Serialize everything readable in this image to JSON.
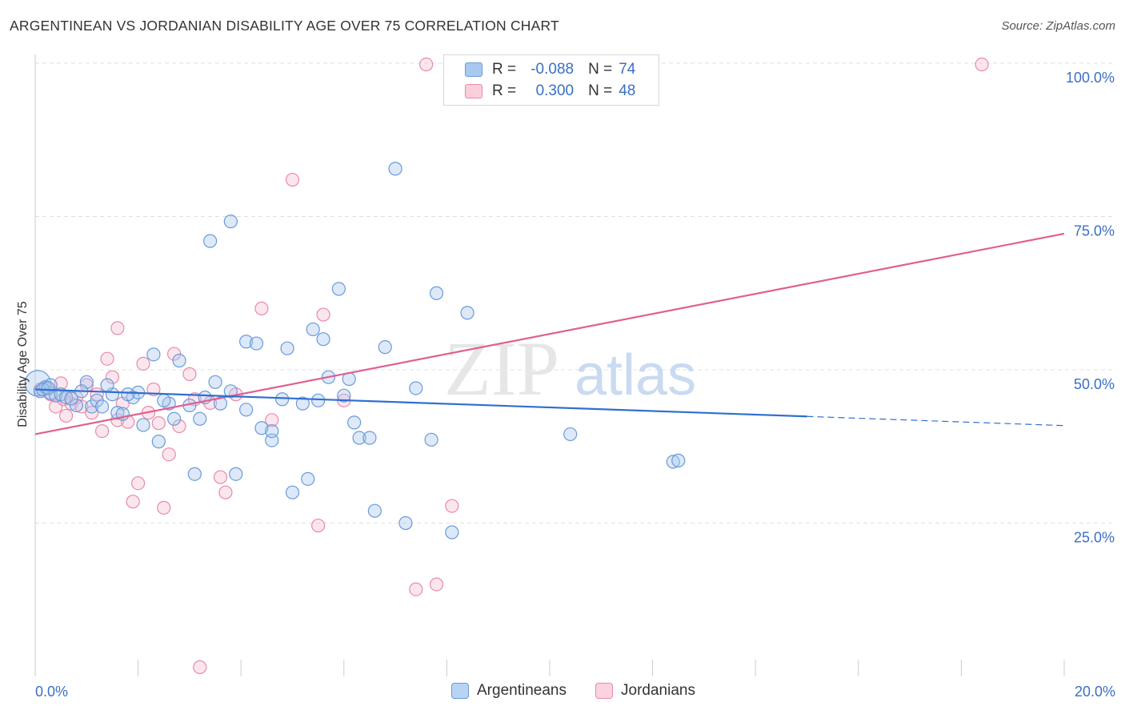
{
  "title": "ARGENTINEAN VS JORDANIAN DISABILITY AGE OVER 75 CORRELATION CHART",
  "source": "Source: ZipAtlas.com",
  "watermark": {
    "zip": "ZIP",
    "atlas": "atlas"
  },
  "legend": {
    "r_label": "R =",
    "n_label": "N =",
    "rows": [
      {
        "r": "-0.088",
        "n": "74"
      },
      {
        "r": "0.300",
        "n": "48"
      }
    ]
  },
  "bottom_legend": {
    "a": "Argentineans",
    "b": "Jordanians"
  },
  "colors": {
    "blue_fill": "#a9c8f0",
    "blue_stroke": "#6a9ad8",
    "blue_line": "#2f6fd0",
    "pink_fill": "#f5b7cb",
    "pink_stroke": "#e88aa8",
    "pink_line": "#e0608e",
    "axis_label": "#3a6fc4",
    "grid": "#e0e0e0"
  },
  "chart_data": {
    "type": "scatter",
    "title": "ARGENTINEAN VS JORDANIAN DISABILITY AGE OVER 75 CORRELATION CHART",
    "xlabel": "",
    "ylabel": "Disability Age Over 75",
    "xlim": [
      0,
      20
    ],
    "ylim": [
      0,
      100
    ],
    "x_tick_labels": [
      "0.0%",
      "20.0%"
    ],
    "y_ticks": [
      25,
      50,
      75,
      100
    ],
    "y_tick_labels": [
      "25.0%",
      "50.0%",
      "75.0%",
      "100.0%"
    ],
    "grid": true,
    "legend_position": "top-center",
    "series": [
      {
        "name": "Argentineans",
        "r": -0.088,
        "n": 74,
        "trend": {
          "x0": 0,
          "y0": 46.8,
          "x1": 15.0,
          "y1": 42.4,
          "dash_to_x": 20.0,
          "dash_to_y": 40.9
        },
        "points": [
          [
            0.05,
            47.8
          ],
          [
            0.1,
            46.5
          ],
          [
            0.2,
            47.2
          ],
          [
            0.3,
            46.2
          ],
          [
            0.4,
            45.8
          ],
          [
            0.5,
            46.0
          ],
          [
            0.6,
            45.5
          ],
          [
            0.8,
            44.2
          ],
          [
            1.0,
            48.0
          ],
          [
            1.1,
            44.0
          ],
          [
            1.2,
            45.0
          ],
          [
            1.3,
            44.0
          ],
          [
            1.5,
            46.0
          ],
          [
            1.6,
            43.0
          ],
          [
            1.7,
            42.8
          ],
          [
            1.9,
            45.5
          ],
          [
            2.1,
            41.0
          ],
          [
            2.3,
            52.5
          ],
          [
            2.4,
            38.3
          ],
          [
            2.6,
            44.5
          ],
          [
            2.7,
            42.0
          ],
          [
            2.8,
            51.5
          ],
          [
            3.0,
            44.2
          ],
          [
            3.1,
            33.0
          ],
          [
            3.2,
            42.0
          ],
          [
            3.3,
            45.5
          ],
          [
            3.4,
            71.0
          ],
          [
            3.5,
            48.0
          ],
          [
            3.6,
            44.5
          ],
          [
            3.8,
            46.5
          ],
          [
            3.8,
            74.2
          ],
          [
            3.9,
            33.0
          ],
          [
            4.1,
            54.6
          ],
          [
            4.1,
            43.5
          ],
          [
            4.3,
            54.3
          ],
          [
            4.4,
            40.5
          ],
          [
            4.6,
            38.5
          ],
          [
            4.6,
            40.0
          ],
          [
            4.8,
            45.2
          ],
          [
            4.9,
            53.5
          ],
          [
            5.0,
            30.0
          ],
          [
            5.2,
            44.5
          ],
          [
            5.3,
            32.2
          ],
          [
            5.4,
            56.6
          ],
          [
            5.5,
            45.0
          ],
          [
            5.6,
            55.0
          ],
          [
            5.7,
            48.8
          ],
          [
            5.9,
            63.2
          ],
          [
            6.0,
            45.8
          ],
          [
            6.1,
            48.5
          ],
          [
            6.2,
            41.4
          ],
          [
            6.3,
            38.9
          ],
          [
            6.5,
            38.9
          ],
          [
            6.6,
            27.0
          ],
          [
            6.8,
            53.7
          ],
          [
            7.0,
            82.8
          ],
          [
            7.2,
            25.0
          ],
          [
            7.4,
            47.0
          ],
          [
            7.7,
            38.6
          ],
          [
            7.8,
            62.5
          ],
          [
            8.1,
            23.5
          ],
          [
            8.4,
            59.3
          ],
          [
            10.4,
            39.5
          ],
          [
            12.4,
            35.0
          ],
          [
            12.5,
            35.2
          ],
          [
            0.9,
            46.5
          ],
          [
            1.4,
            47.5
          ],
          [
            2.0,
            46.3
          ],
          [
            0.7,
            45.3
          ],
          [
            0.3,
            47.5
          ],
          [
            1.8,
            46.0
          ],
          [
            2.5,
            45.0
          ],
          [
            0.15,
            46.8
          ],
          [
            0.25,
            47.0
          ]
        ]
      },
      {
        "name": "Jordanians",
        "r": 0.3,
        "n": 48,
        "trend": {
          "x0": 0,
          "y0": 39.5,
          "x1": 20.0,
          "y1": 72.2
        },
        "points": [
          [
            0.1,
            46.8
          ],
          [
            0.2,
            47.0
          ],
          [
            0.3,
            46.0
          ],
          [
            0.4,
            44.0
          ],
          [
            0.5,
            47.8
          ],
          [
            0.6,
            42.5
          ],
          [
            0.7,
            44.5
          ],
          [
            0.8,
            45.5
          ],
          [
            0.9,
            44.0
          ],
          [
            1.0,
            47.5
          ],
          [
            1.1,
            43.0
          ],
          [
            1.2,
            46.0
          ],
          [
            1.3,
            40.0
          ],
          [
            1.4,
            51.8
          ],
          [
            1.5,
            48.8
          ],
          [
            1.6,
            41.8
          ],
          [
            1.7,
            44.5
          ],
          [
            1.8,
            41.5
          ],
          [
            1.9,
            28.5
          ],
          [
            2.0,
            31.5
          ],
          [
            2.1,
            51.0
          ],
          [
            2.2,
            43.0
          ],
          [
            2.3,
            46.8
          ],
          [
            2.4,
            41.3
          ],
          [
            2.5,
            27.5
          ],
          [
            2.6,
            36.2
          ],
          [
            2.7,
            52.6
          ],
          [
            2.8,
            40.8
          ],
          [
            3.0,
            49.3
          ],
          [
            3.1,
            45.2
          ],
          [
            3.2,
            1.5
          ],
          [
            3.4,
            44.6
          ],
          [
            3.6,
            32.5
          ],
          [
            3.7,
            30.0
          ],
          [
            3.9,
            46.0
          ],
          [
            4.4,
            60.0
          ],
          [
            4.6,
            41.8
          ],
          [
            5.0,
            81.0
          ],
          [
            5.5,
            24.6
          ],
          [
            5.6,
            59.0
          ],
          [
            6.0,
            45.0
          ],
          [
            7.4,
            14.2
          ],
          [
            7.8,
            15.0
          ],
          [
            8.1,
            27.8
          ],
          [
            7.6,
            99.8
          ],
          [
            18.4,
            99.8
          ],
          [
            1.6,
            56.8
          ],
          [
            0.55,
            45.2
          ]
        ]
      }
    ]
  }
}
